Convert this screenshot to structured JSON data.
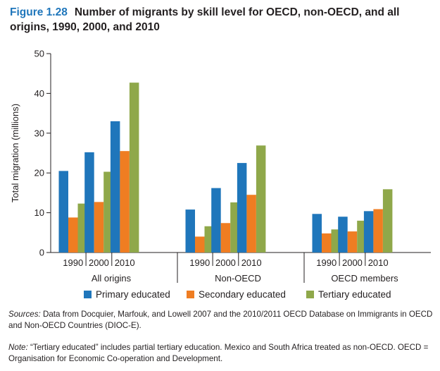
{
  "figure": {
    "number": "Figure 1.28",
    "title": "Number of migrants by skill level for OECD, non-OECD, and all origins, 1990, 2000, and 2010"
  },
  "chart_data": {
    "type": "bar",
    "ylabel": "Total migration (millions)",
    "ylim": [
      0,
      50
    ],
    "yticks": [
      0,
      10,
      20,
      30,
      40,
      50
    ],
    "grid": false,
    "groups": [
      "All origins",
      "Non-OECD",
      "OECD members"
    ],
    "years": [
      "1990",
      "2000",
      "2010"
    ],
    "series": [
      {
        "name": "Primary educated",
        "color": "#1f76bb",
        "values": [
          [
            20.5,
            25.2,
            33.0
          ],
          [
            10.8,
            16.2,
            22.5
          ],
          [
            9.7,
            9.0,
            10.4
          ]
        ]
      },
      {
        "name": "Secondary educated",
        "color": "#ef7d22",
        "values": [
          [
            8.8,
            12.7,
            25.5
          ],
          [
            4.0,
            7.4,
            14.5
          ],
          [
            4.8,
            5.3,
            10.9
          ]
        ]
      },
      {
        "name": "Tertiary educated",
        "color": "#8fa84a",
        "values": [
          [
            12.3,
            20.3,
            42.7
          ],
          [
            6.6,
            12.6,
            26.9
          ],
          [
            5.8,
            8.0,
            15.9
          ]
        ]
      }
    ],
    "legend_position": "bottom"
  },
  "notes": {
    "sources_label": "Sources:",
    "sources_text": " Data from Docquier, Marfouk, and Lowell 2007 and the 2010/2011 OECD Database on Immigrants in OECD and Non-OECD Countries (DIOC-E).",
    "note_label": "Note:",
    "note_text": " “Tertiary educated” includes partial tertiary education. Mexico and South Africa treated as non-OECD. OECD = Organisation for Economic Co-operation and Development."
  }
}
